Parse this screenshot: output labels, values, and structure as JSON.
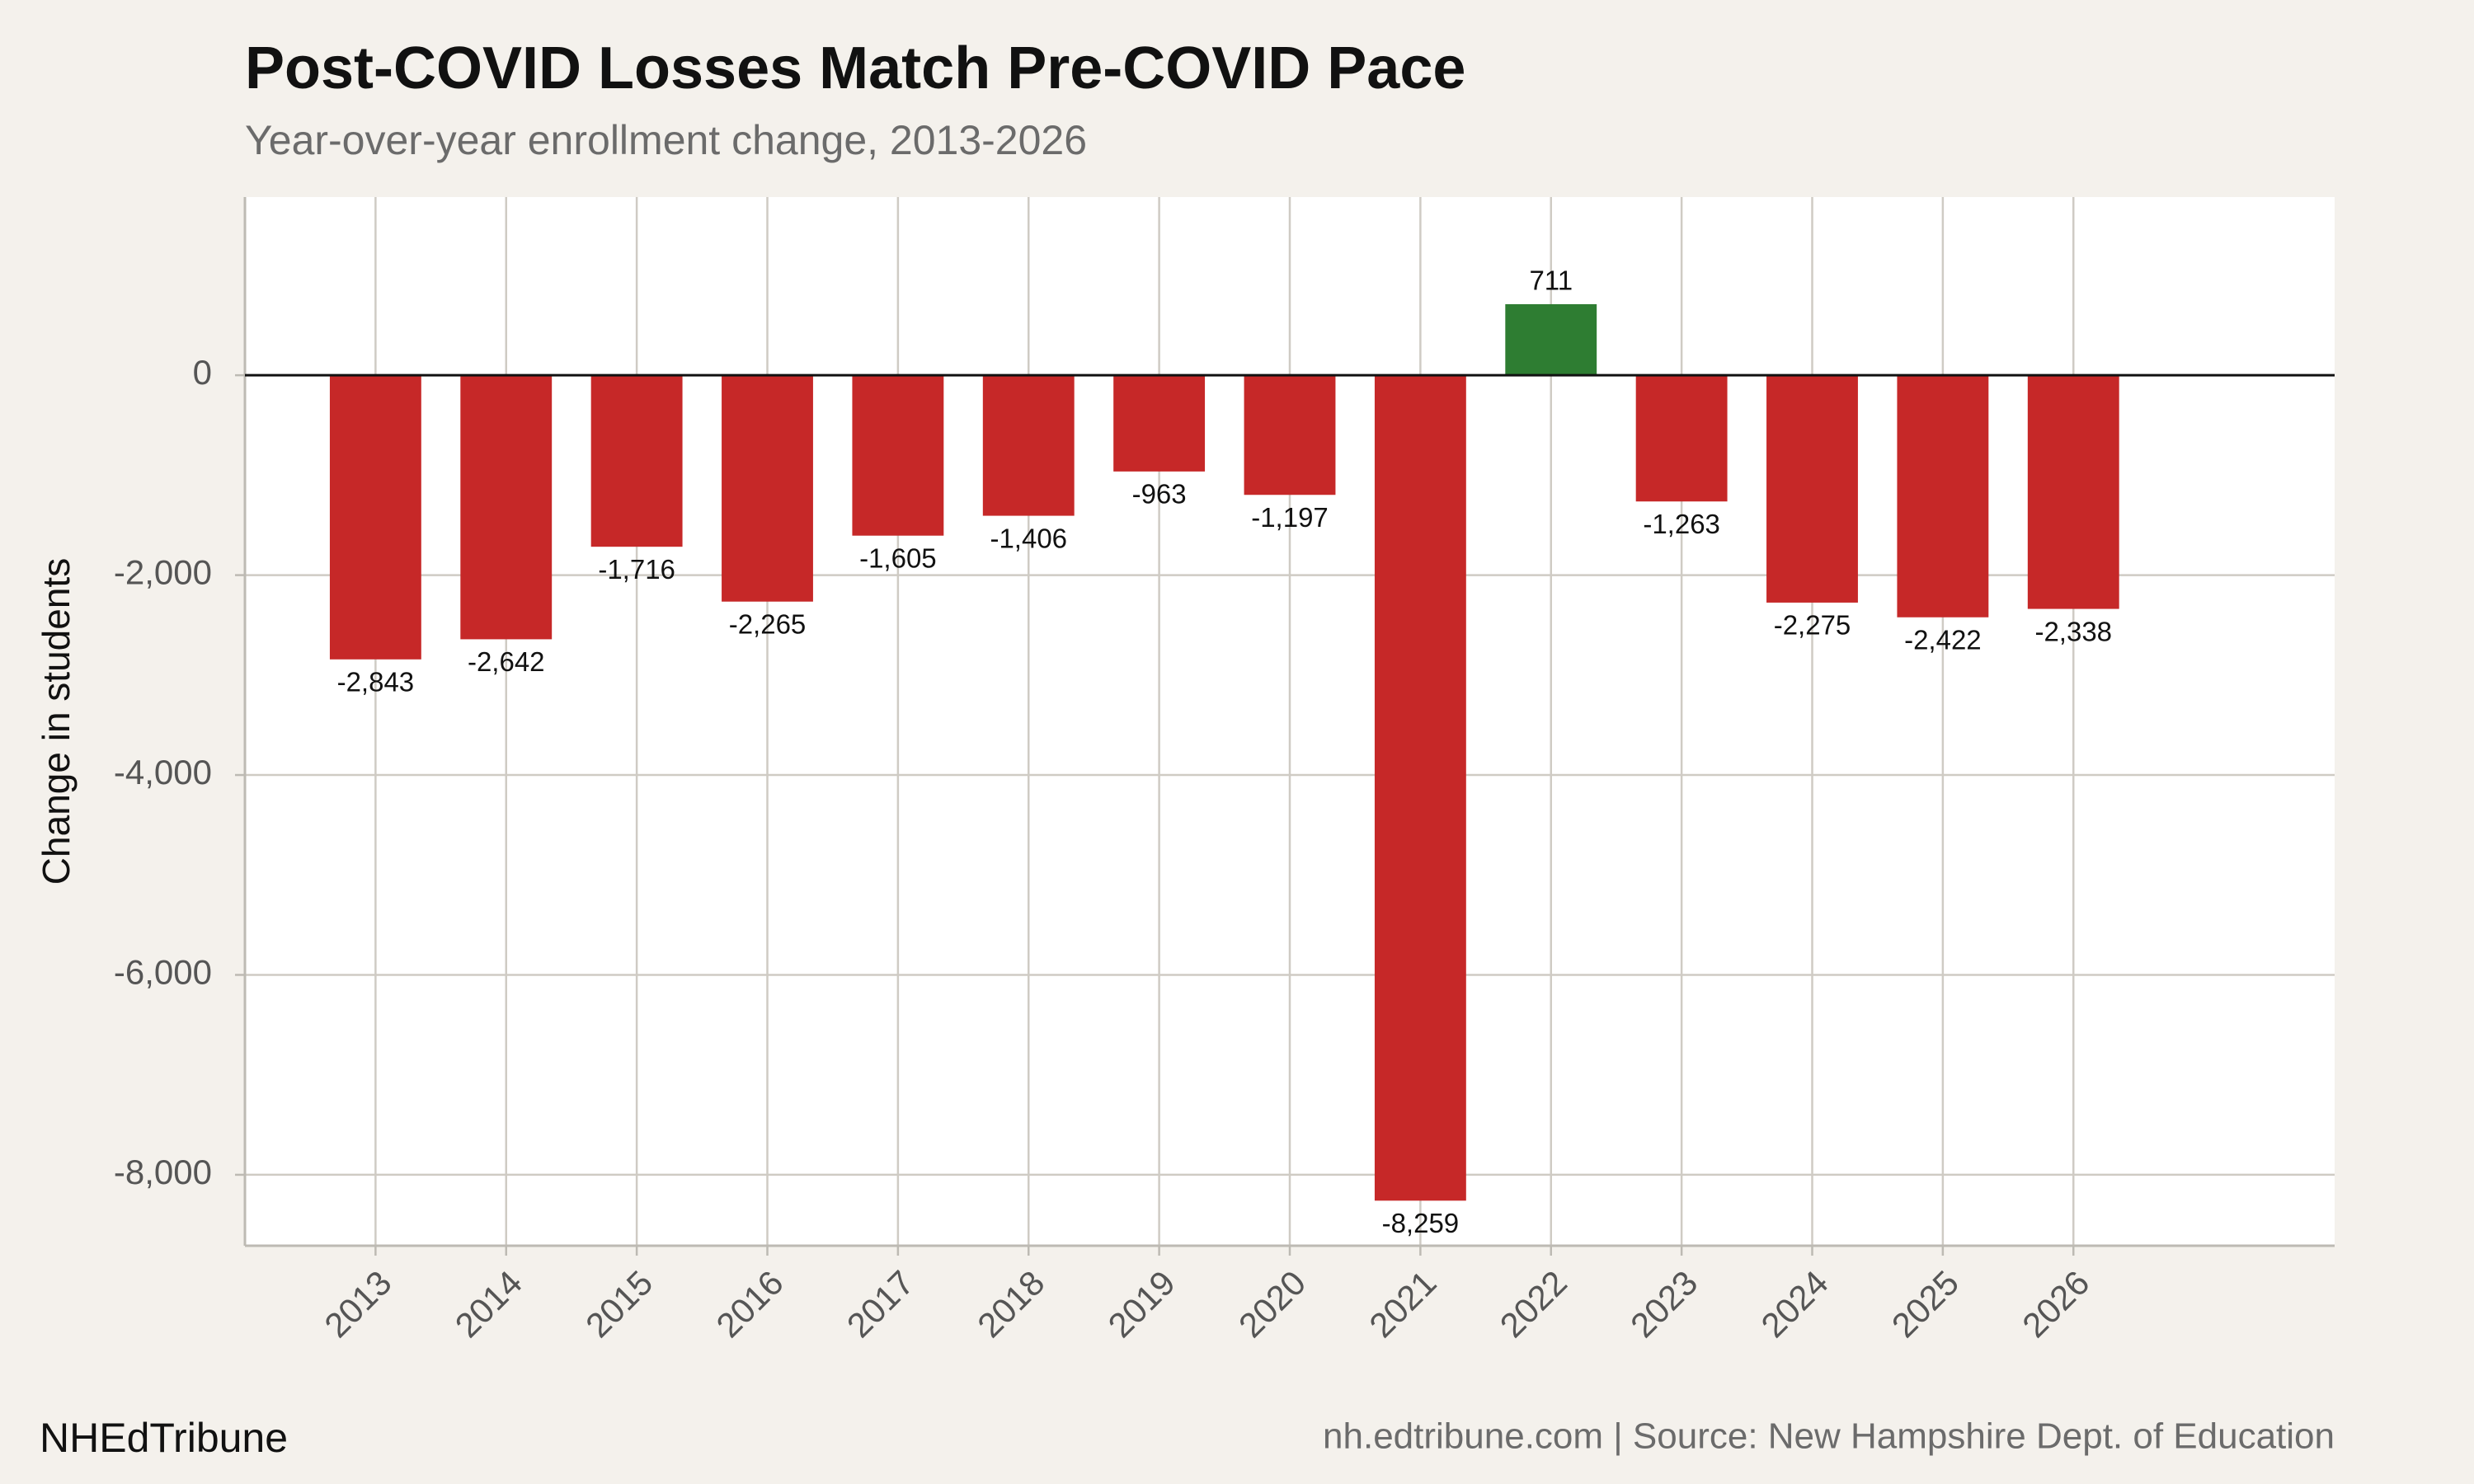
{
  "chart_data": {
    "type": "bar",
    "title": "Post-COVID Losses Match Pre-COVID Pace",
    "subtitle": "Year-over-year enrollment change, 2013-2026",
    "y_label": "Change in students",
    "categories": [
      "2013",
      "2014",
      "2015",
      "2016",
      "2017",
      "2018",
      "2019",
      "2020",
      "2021",
      "2022",
      "2023",
      "2024",
      "2025",
      "2026"
    ],
    "values": [
      -2843,
      -2642,
      -1716,
      -2265,
      -1605,
      -1406,
      -963,
      -1197,
      -8259,
      711,
      -1263,
      -2275,
      -2422,
      -2338
    ],
    "value_labels": [
      "-2,843",
      "-2,642",
      "-1,716",
      "-2,265",
      "-1,605",
      "-1,406",
      "-963",
      "-1,197",
      "-8,259",
      "711",
      "-1,263",
      "-2,275",
      "-2,422",
      "-2,338"
    ],
    "colors": [
      "#c62828",
      "#c62828",
      "#c62828",
      "#c62828",
      "#c62828",
      "#c62828",
      "#c62828",
      "#c62828",
      "#c62828",
      "#2e7d32",
      "#c62828",
      "#c62828",
      "#c62828",
      "#c62828"
    ],
    "ylim": [
      -8710,
      1783
    ],
    "yticks": [
      {
        "value": -8000,
        "label": "-8,000"
      },
      {
        "value": -6000,
        "label": "-6,000"
      },
      {
        "value": -4000,
        "label": "-4,000"
      },
      {
        "value": -2000,
        "label": "-2,000"
      },
      0
    ],
    "grid": true,
    "brand": "NHEdTribune",
    "source": "nh.edtribune.com | Source: New Hampshire Dept. of Education"
  }
}
